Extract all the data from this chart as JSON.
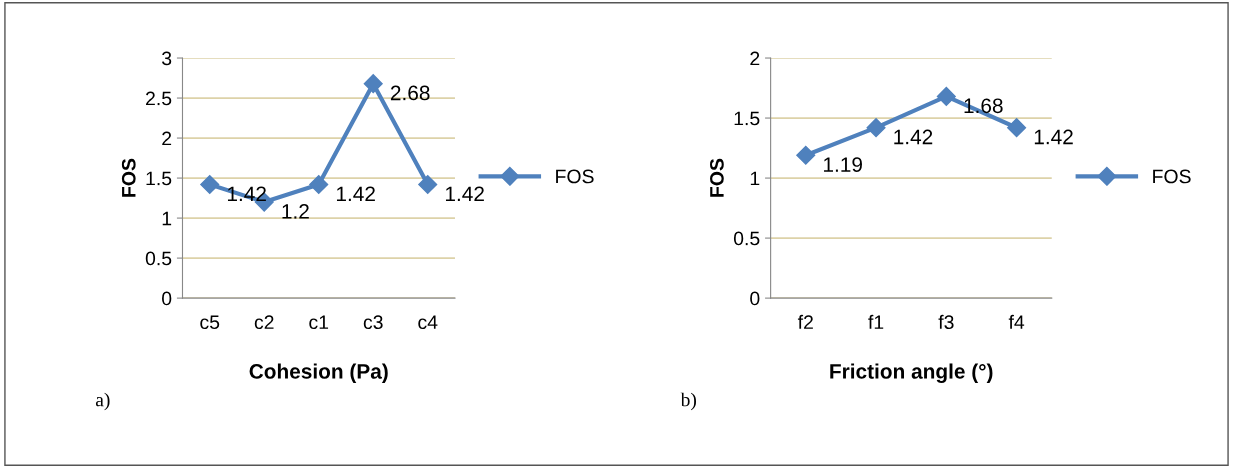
{
  "chart_data": [
    {
      "type": "line",
      "categories": [
        "c5",
        "c2",
        "c1",
        "c3",
        "c4"
      ],
      "series": [
        {
          "name": "FOS",
          "color": "#4f81bd",
          "values": [
            1.42,
            1.2,
            1.42,
            2.68,
            1.42
          ]
        }
      ],
      "ylim": [
        0,
        3
      ],
      "yticks": [
        0,
        0.5,
        1,
        1.5,
        2,
        2.5,
        3
      ],
      "ylabel": "FOS",
      "xlabel": "Cohesion (Pa)",
      "annotations": [
        "a)"
      ],
      "data_labels": true,
      "grid": "y",
      "legend": "right",
      "marker": "diamond",
      "line_style": "solid"
    },
    {
      "type": "line",
      "categories": [
        "f2",
        "f1",
        "f3",
        "f4"
      ],
      "series": [
        {
          "name": "FOS",
          "color": "#4f81bd",
          "values": [
            1.19,
            1.42,
            1.68,
            1.42
          ]
        }
      ],
      "ylim": [
        0,
        2
      ],
      "yticks": [
        0,
        0.5,
        1,
        1.5,
        2
      ],
      "ylabel": "FOS",
      "xlabel": "Friction angle (°)",
      "annotations": [
        "b)"
      ],
      "data_labels": true,
      "grid": "y",
      "legend": "right",
      "marker": "diamond",
      "line_style": "solid"
    }
  ]
}
